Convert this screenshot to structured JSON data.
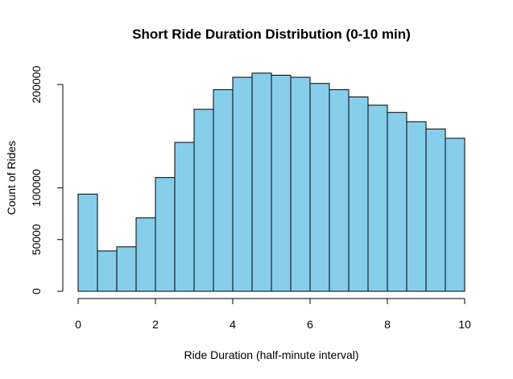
{
  "chart_data": {
    "type": "bar",
    "title": "Short Ride Duration Distribution (0-10 min)",
    "xlabel": "Ride Duration (half-minute interval)",
    "ylabel": "Count of Rides",
    "bin_edges": [
      0,
      0.5,
      1,
      1.5,
      2,
      2.5,
      3,
      3.5,
      4,
      4.5,
      5,
      5.5,
      6,
      6.5,
      7,
      7.5,
      8,
      8.5,
      9,
      9.5,
      10
    ],
    "values": [
      94000,
      39000,
      43000,
      71000,
      110000,
      144000,
      176000,
      195000,
      207000,
      211000,
      209000,
      207000,
      201000,
      195000,
      188000,
      180000,
      173000,
      164000,
      157000,
      148000
    ],
    "xlim": [
      0,
      10
    ],
    "ylim": [
      0,
      200000
    ],
    "x_ticks": [
      0,
      2,
      4,
      6,
      8,
      10
    ],
    "x_tick_labels": [
      "0",
      "2",
      "4",
      "6",
      "8",
      "10"
    ],
    "y_ticks": [
      0,
      50000,
      100000,
      200000
    ],
    "y_tick_labels": [
      "0",
      "50000",
      "100000",
      "200000"
    ],
    "grid": false,
    "bar_color": "#87ceeb",
    "edge_color": "#000000"
  }
}
